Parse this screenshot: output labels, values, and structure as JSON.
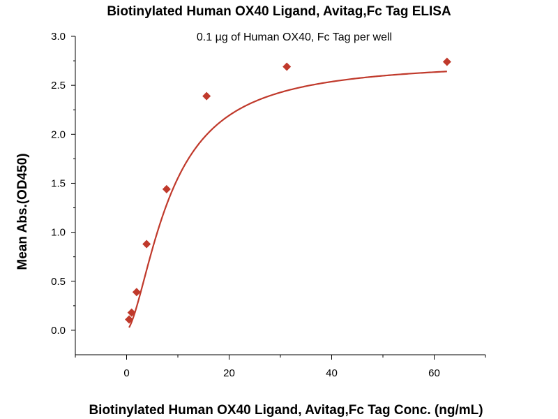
{
  "chart_data": {
    "type": "scatter",
    "title": "Biotinylated Human OX40 Ligand, Avitag,Fc Tag ELISA",
    "subtitle": "0.1 µg of Human OX40, Fc Tag per well",
    "xlabel": "Biotinylated Human OX40 Ligand, Avitag,Fc Tag Conc. (ng/mL)",
    "ylabel": "Mean Abs.(OD450)",
    "xlim": [
      -10,
      70
    ],
    "ylim": [
      -0.25,
      3.0
    ],
    "xticks": [
      "0",
      "20",
      "40",
      "60"
    ],
    "yticks": [
      "0.0",
      "0.5",
      "1.0",
      "1.5",
      "2.0",
      "2.5",
      "3.0"
    ],
    "grid": false,
    "legend": "none",
    "colors": {
      "series": "#c0392b",
      "axis": "#000000"
    },
    "series": [
      {
        "marker": "diamond",
        "x": [
          0.49,
          0.98,
          1.95,
          3.9,
          7.8,
          15.6,
          31.25,
          62.5
        ],
        "y": [
          0.11,
          0.18,
          0.39,
          0.88,
          1.44,
          2.39,
          2.69,
          2.74
        ]
      }
    ],
    "fit_curve": {
      "type": "4PL",
      "bottom": 0.0,
      "top": 2.75,
      "ec50": 8.5,
      "hill": 1.6
    }
  }
}
